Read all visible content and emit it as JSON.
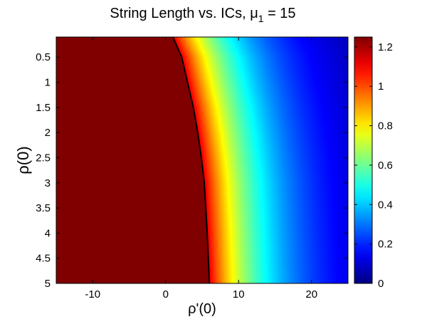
{
  "chart_data": {
    "type": "heatmap",
    "title": "String Length vs.  ICs, ",
    "title_symbol": "μ",
    "title_subscript": "1",
    "title_suffix": " = 15",
    "xlabel": "ρ'(0)",
    "ylabel": "ρ(0)",
    "xlim": [
      -15,
      25
    ],
    "ylim": [
      0.1,
      5
    ],
    "y_reversed": true,
    "xticks": [
      -10,
      0,
      10,
      20
    ],
    "yticks": [
      0.5,
      1,
      1.5,
      2,
      2.5,
      3,
      3.5,
      4,
      4.5,
      5
    ],
    "colorbar": {
      "range": [
        0,
        1.25
      ],
      "ticks": [
        0,
        0.2,
        0.4,
        0.6,
        0.8,
        1,
        1.2
      ],
      "colormap": "jet"
    },
    "saturated_region_value": 1.25,
    "boundary_curve": {
      "x": [
        1.0,
        2.2,
        3.0,
        3.8,
        4.4,
        4.9,
        5.3,
        5.7,
        6.0
      ],
      "y": [
        0.1,
        0.5,
        1.0,
        1.5,
        2.0,
        2.5,
        3.0,
        4.0,
        5.0
      ]
    },
    "boundary_color": "#000000"
  }
}
